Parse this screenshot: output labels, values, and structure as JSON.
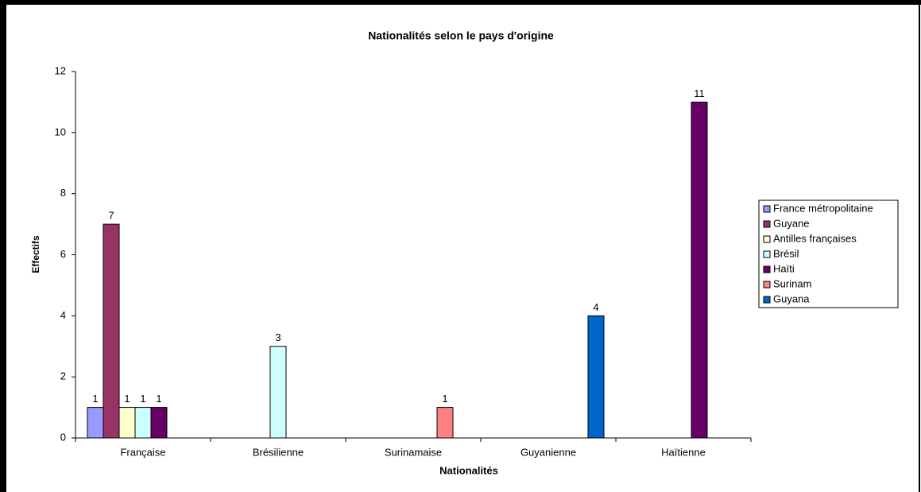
{
  "chart_data": {
    "type": "bar",
    "title": "Nationalités selon le pays d'origine",
    "x_label": "Nationalités",
    "y_label": "Effectifs",
    "categories": [
      "Française",
      "Brésilienne",
      "Surinamaise",
      "Guyanienne",
      "Haïtienne"
    ],
    "series": [
      {
        "name": "France métropolitaine",
        "color": "#9999ff",
        "values": [
          1,
          null,
          null,
          null,
          null
        ]
      },
      {
        "name": "Guyane",
        "color": "#993366",
        "values": [
          7,
          null,
          null,
          null,
          null
        ]
      },
      {
        "name": "Antilles françaises",
        "color": "#ffffcc",
        "values": [
          1,
          null,
          null,
          null,
          null
        ]
      },
      {
        "name": "Brésil",
        "color": "#ccffff",
        "values": [
          1,
          3,
          null,
          null,
          null
        ]
      },
      {
        "name": "Haïti",
        "color": "#660066",
        "values": [
          1,
          null,
          null,
          null,
          11
        ]
      },
      {
        "name": "Surinam",
        "color": "#ff8080",
        "values": [
          null,
          null,
          1,
          null,
          null
        ]
      },
      {
        "name": "Guyana",
        "color": "#0066cc",
        "values": [
          null,
          null,
          null,
          4,
          null
        ]
      }
    ],
    "ylim": [
      0,
      12
    ],
    "yticks": [
      0,
      2,
      4,
      6,
      8,
      10,
      12
    ],
    "legend": "right",
    "data_labels": true
  }
}
